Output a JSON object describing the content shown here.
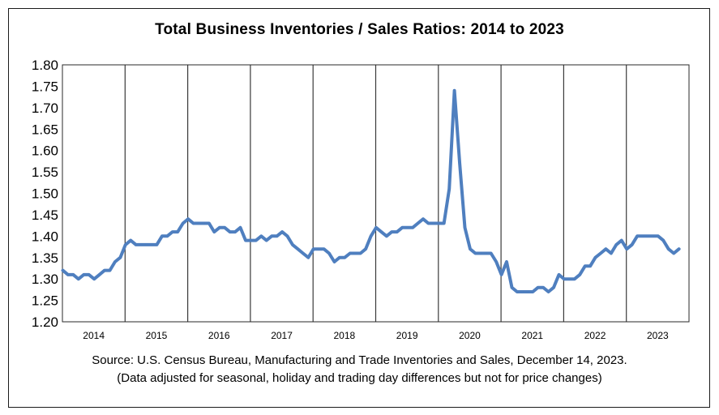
{
  "chart_data": {
    "type": "line",
    "title": "Total Business Inventories / Sales Ratios: 2014 to 2023",
    "xlabel": "",
    "ylabel": "",
    "ylim": [
      1.2,
      1.8
    ],
    "yticks": [
      "1.20",
      "1.25",
      "1.30",
      "1.35",
      "1.40",
      "1.45",
      "1.50",
      "1.55",
      "1.60",
      "1.65",
      "1.70",
      "1.75",
      "1.80"
    ],
    "years": [
      "2014",
      "2015",
      "2016",
      "2017",
      "2018",
      "2019",
      "2020",
      "2021",
      "2022",
      "2023"
    ],
    "grid": "vertical lines between years",
    "legend": "none",
    "line_color": "#4f7fbf",
    "series": [
      {
        "values": [
          1.32,
          1.31,
          1.31,
          1.3,
          1.31,
          1.31,
          1.3,
          1.31,
          1.32,
          1.32,
          1.34,
          1.35,
          1.38,
          1.39,
          1.38,
          1.38,
          1.38,
          1.38,
          1.38,
          1.4,
          1.4,
          1.41,
          1.41,
          1.43,
          1.44,
          1.43,
          1.43,
          1.43,
          1.43,
          1.41,
          1.42,
          1.42,
          1.41,
          1.41,
          1.42,
          1.39,
          1.39,
          1.39,
          1.4,
          1.39,
          1.4,
          1.4,
          1.41,
          1.4,
          1.38,
          1.37,
          1.36,
          1.35,
          1.37,
          1.37,
          1.37,
          1.36,
          1.34,
          1.35,
          1.35,
          1.36,
          1.36,
          1.36,
          1.37,
          1.4,
          1.42,
          1.41,
          1.4,
          1.41,
          1.41,
          1.42,
          1.42,
          1.42,
          1.43,
          1.44,
          1.43,
          1.43,
          1.43,
          1.43,
          1.51,
          1.74,
          1.57,
          1.42,
          1.37,
          1.36,
          1.36,
          1.36,
          1.36,
          1.34,
          1.31,
          1.34,
          1.28,
          1.27,
          1.27,
          1.27,
          1.27,
          1.28,
          1.28,
          1.27,
          1.28,
          1.31,
          1.3,
          1.3,
          1.3,
          1.31,
          1.33,
          1.33,
          1.35,
          1.36,
          1.37,
          1.36,
          1.38,
          1.39,
          1.37,
          1.38,
          1.4,
          1.4,
          1.4,
          1.4,
          1.4,
          1.39,
          1.37,
          1.36,
          1.37
        ]
      }
    ]
  },
  "source_line1": "Source: U.S. Census Bureau, Manufacturing and Trade Inventories and Sales, December 14, 2023.",
  "source_line2": "(Data adjusted for seasonal, holiday and trading day differences but not for price changes)"
}
